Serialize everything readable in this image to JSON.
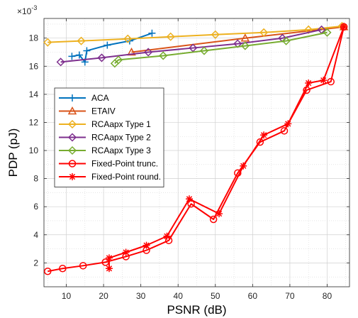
{
  "chart_data": {
    "type": "line",
    "xlabel": "PSNR (dB)",
    "ylabel": "PDP (pJ)",
    "y_multiplier": "×10",
    "y_exponent": "-3",
    "xlim": [
      4,
      86
    ],
    "ylim": [
      0.3,
      19.4
    ],
    "xticks": [
      10,
      20,
      30,
      40,
      50,
      60,
      70,
      80
    ],
    "yticks": [
      2,
      4,
      6,
      8,
      10,
      12,
      14,
      16,
      18
    ],
    "grid": true,
    "minor_grid": true,
    "legend_position": "center-left",
    "series": [
      {
        "name": "ACA",
        "color": "#0072BD",
        "marker": "plus",
        "points": [
          [
            11.5,
            16.7
          ],
          [
            13.5,
            16.8
          ],
          [
            15.0,
            16.3
          ],
          [
            15.5,
            17.1
          ],
          [
            21.0,
            17.5
          ],
          [
            27.0,
            17.8
          ],
          [
            33.0,
            18.35
          ]
        ]
      },
      {
        "name": "ETAIV",
        "color": "#D95319",
        "marker": "triangle",
        "points": [
          [
            27.5,
            17.0
          ],
          [
            58.0,
            18.0
          ],
          [
            84.5,
            18.8
          ]
        ]
      },
      {
        "name": "RCAapx Type 1",
        "color": "#EDB120",
        "marker": "diamond",
        "points": [
          [
            5.0,
            17.7
          ],
          [
            14.0,
            17.8
          ],
          [
            26.5,
            17.95
          ],
          [
            38.0,
            18.1
          ],
          [
            50.0,
            18.25
          ],
          [
            63.0,
            18.4
          ],
          [
            75.0,
            18.6
          ],
          [
            84.0,
            18.85
          ]
        ]
      },
      {
        "name": "RCAapx Type 2",
        "color": "#7E2F8E",
        "marker": "diamond",
        "points": [
          [
            8.5,
            16.3
          ],
          [
            19.5,
            16.6
          ],
          [
            32.0,
            17.0
          ],
          [
            44.0,
            17.3
          ],
          [
            56.0,
            17.6
          ],
          [
            68.0,
            18.0
          ],
          [
            78.5,
            18.6
          ]
        ]
      },
      {
        "name": "RCAapx Type 3",
        "color": "#77AC30",
        "marker": "diamond",
        "points": [
          [
            23.0,
            16.2
          ],
          [
            24.0,
            16.45
          ],
          [
            36.0,
            16.75
          ],
          [
            47.0,
            17.1
          ],
          [
            58.0,
            17.45
          ],
          [
            69.0,
            17.8
          ],
          [
            80.0,
            18.4
          ]
        ]
      },
      {
        "name": "Fixed-Point trunc.",
        "color": "#FF0000",
        "marker": "circle",
        "points": [
          [
            5.0,
            1.4
          ],
          [
            9.0,
            1.6
          ],
          [
            14.5,
            1.8
          ],
          [
            20.5,
            2.05
          ],
          [
            26.0,
            2.45
          ],
          [
            31.5,
            2.9
          ],
          [
            37.5,
            3.6
          ],
          [
            43.5,
            6.2
          ],
          [
            49.5,
            5.1
          ],
          [
            56.0,
            8.4
          ],
          [
            62.0,
            10.6
          ],
          [
            68.5,
            11.4
          ],
          [
            74.5,
            14.3
          ],
          [
            81.0,
            14.9
          ],
          [
            84.5,
            18.8
          ]
        ]
      },
      {
        "name": "Fixed-Point round.",
        "color": "#FF0000",
        "marker": "asterisk",
        "points": [
          [
            21.5,
            1.6
          ],
          [
            21.5,
            2.35
          ],
          [
            26.0,
            2.75
          ],
          [
            31.5,
            3.25
          ],
          [
            37.0,
            3.9
          ],
          [
            43.0,
            6.55
          ],
          [
            51.0,
            5.5
          ],
          [
            57.5,
            8.9
          ],
          [
            63.0,
            11.1
          ],
          [
            69.5,
            11.9
          ],
          [
            75.0,
            14.8
          ],
          [
            79.0,
            15.0
          ],
          [
            84.5,
            18.8
          ]
        ]
      }
    ]
  }
}
